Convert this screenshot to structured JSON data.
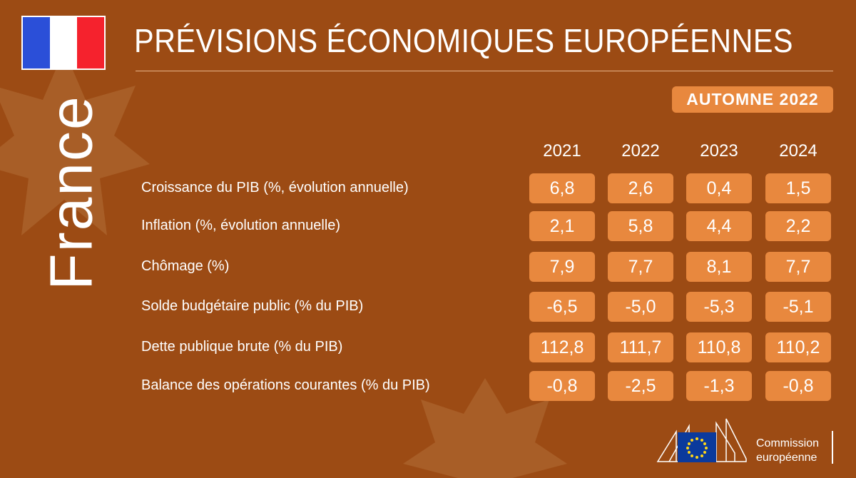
{
  "header": {
    "title": "PRÉVISIONS ÉCONOMIQUES EUROPÉENNES",
    "badge": "AUTOMNE 2022",
    "country": "France"
  },
  "table": {
    "columns": [
      "2021",
      "2022",
      "2023",
      "2024"
    ],
    "rows": [
      {
        "label": "Croissance du PIB (%, évolution annuelle)",
        "values": [
          "6,8",
          "2,6",
          "0,4",
          "1,5"
        ]
      },
      {
        "label": "Inflation (%, évolution annuelle)",
        "values": [
          "2,1",
          "5,8",
          "4,4",
          "2,2"
        ]
      },
      {
        "label": "Chômage (%)",
        "values": [
          "7,9",
          "7,7",
          "8,1",
          "7,7"
        ]
      },
      {
        "label": "Solde budgétaire public (% du PIB)",
        "values": [
          "-6,5",
          "-5,0",
          "-5,3",
          "-5,1"
        ]
      },
      {
        "label": "Dette publique brute (% du PIB)",
        "values": [
          "112,8",
          "111,7",
          "110,8",
          "110,2"
        ]
      },
      {
        "label": "Balance des opérations courantes (% du PIB)",
        "values": [
          "-0,8",
          "-2,5",
          "-1,3",
          "-0,8"
        ]
      }
    ]
  },
  "logo": {
    "line1": "Commission",
    "line2": "européenne"
  }
}
